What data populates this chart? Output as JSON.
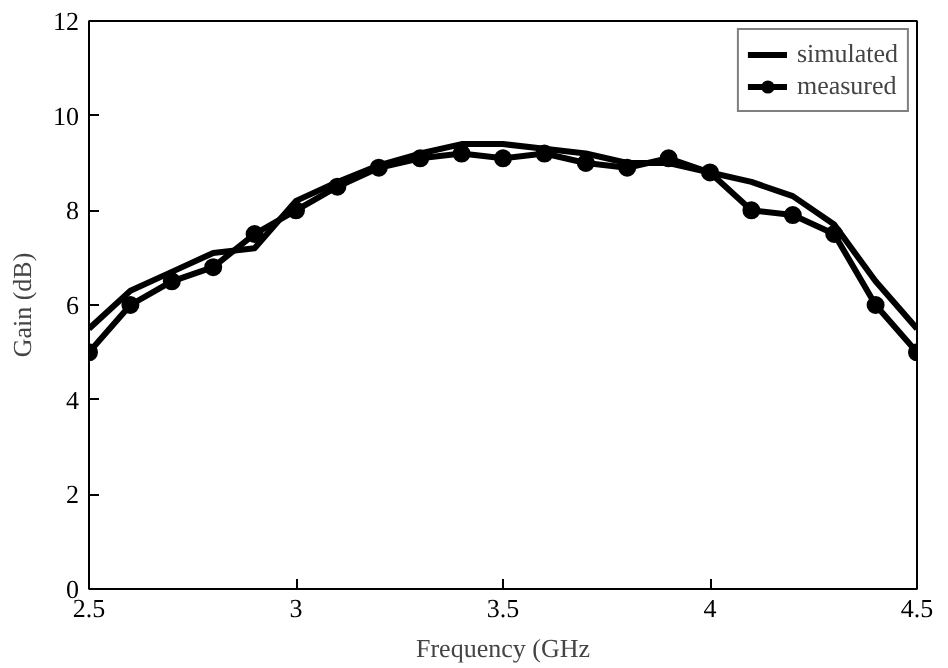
{
  "chart_data": {
    "type": "line",
    "xlabel": "Frequency (GHz",
    "ylabel": "Gain (dB)",
    "x": [
      2.5,
      2.6,
      2.7,
      2.8,
      2.9,
      3.0,
      3.1,
      3.2,
      3.3,
      3.4,
      3.5,
      3.6,
      3.7,
      3.8,
      3.9,
      4.0,
      4.1,
      4.2,
      4.3,
      4.4,
      4.5
    ],
    "series": [
      {
        "name": "simulated",
        "color": "#000000",
        "marker": "none",
        "values": [
          5.5,
          6.3,
          6.7,
          7.1,
          7.2,
          8.2,
          8.6,
          8.95,
          9.2,
          9.4,
          9.4,
          9.3,
          9.2,
          9.0,
          9.0,
          8.8,
          8.6,
          8.3,
          7.7,
          6.5,
          5.5
        ]
      },
      {
        "name": "measured",
        "color": "#000000",
        "marker": "circle",
        "values": [
          5.0,
          6.0,
          6.5,
          6.8,
          7.5,
          8.0,
          8.5,
          8.9,
          9.1,
          9.2,
          9.1,
          9.2,
          9.0,
          8.9,
          9.1,
          8.8,
          8.0,
          7.9,
          7.5,
          6.0,
          5.0
        ]
      }
    ],
    "xlim": [
      2.5,
      4.5
    ],
    "xticks": [
      2.5,
      3,
      3.5,
      4,
      4.5
    ],
    "ylim": [
      0,
      12
    ],
    "yticks": [
      0,
      2,
      4,
      6,
      8,
      10,
      12
    ],
    "grid": false,
    "legend": "top right"
  }
}
